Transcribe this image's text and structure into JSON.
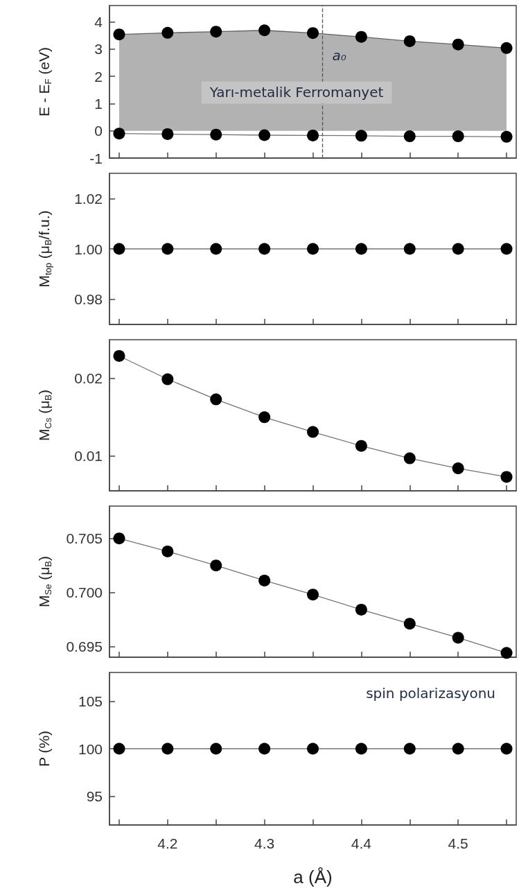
{
  "chart_data": [
    {
      "type": "area",
      "ylabel": "E - E$_{F}$ (eV)",
      "x": [
        4.15,
        4.2,
        4.25,
        4.3,
        4.35,
        4.4,
        4.45,
        4.5,
        4.55
      ],
      "series": [
        {
          "color": "#000000",
          "values": [
            3.54,
            3.6,
            3.64,
            3.69,
            3.59,
            3.45,
            3.29,
            3.17,
            3.04
          ]
        },
        {
          "type": "line",
          "color": "#000000",
          "values": [
            -0.1,
            -0.12,
            -0.14,
            -0.16,
            -0.17,
            -0.18,
            -0.2,
            -0.2,
            -0.22
          ]
        }
      ],
      "xlim": [
        4.14,
        4.56
      ],
      "xticks": [
        {
          "value": 4.15,
          "label": null
        },
        4.2,
        {
          "value": 4.25,
          "label": null
        },
        4.3,
        {
          "value": 4.35,
          "label": null
        },
        4.4,
        {
          "value": 4.45,
          "label": null
        },
        4.5,
        {
          "value": 4.55,
          "label": null
        }
      ],
      "ylim": [
        -1,
        4.6
      ],
      "yticks": [
        -1,
        0,
        1,
        2,
        3,
        4
      ],
      "ref_lines": [
        {
          "axis": "x",
          "value": 4.36,
          "label": "a₀",
          "line_style": "dashed",
          "color": "#555555"
        }
      ],
      "annotations": [
        "Yarı-metalik Ferromanyet"
      ],
      "marker": "circle",
      "line_style": "solid",
      "tick_labels": "y"
    },
    {
      "type": "line",
      "ylabel": "M$_{top}$ (μ$_{B}$/f.u.)",
      "x": [
        4.15,
        4.2,
        4.25,
        4.3,
        4.35,
        4.4,
        4.45,
        4.5,
        4.55
      ],
      "series": [
        {
          "color": "#000000",
          "values": [
            1.0,
            1.0,
            1.0,
            1.0,
            1.0,
            1.0,
            1.0,
            1.0,
            1.0
          ]
        }
      ],
      "xlim": [
        4.14,
        4.56
      ],
      "xticks": [
        {
          "value": 4.15,
          "label": null
        },
        4.2,
        {
          "value": 4.25,
          "label": null
        },
        4.3,
        {
          "value": 4.35,
          "label": null
        },
        4.4,
        {
          "value": 4.45,
          "label": null
        },
        4.5,
        {
          "value": 4.55,
          "label": null
        }
      ],
      "ylim": [
        0.97,
        1.03
      ],
      "yticks": [
        {
          "value": 0.98,
          "label": "0.98"
        },
        {
          "value": 1.0,
          "label": "1.00"
        },
        {
          "value": 1.02,
          "label": "1.02"
        }
      ],
      "marker": "circle",
      "line_style": "solid",
      "tick_labels": "y"
    },
    {
      "type": "line",
      "ylabel": "M$_{Cs}$ (μ$_{B}$)",
      "x": [
        4.15,
        4.2,
        4.25,
        4.3,
        4.35,
        4.4,
        4.45,
        4.5,
        4.55
      ],
      "series": [
        {
          "color": "#000000",
          "values": [
            0.0229,
            0.0199,
            0.0173,
            0.015,
            0.0131,
            0.0113,
            0.0097,
            0.0084,
            0.0073
          ]
        }
      ],
      "xlim": [
        4.14,
        4.56
      ],
      "xticks": [
        {
          "value": 4.15,
          "label": null
        },
        4.2,
        {
          "value": 4.25,
          "label": null
        },
        4.3,
        {
          "value": 4.35,
          "label": null
        },
        4.4,
        {
          "value": 4.45,
          "label": null
        },
        4.5,
        {
          "value": 4.55,
          "label": null
        }
      ],
      "ylim": [
        0.0055,
        0.025
      ],
      "yticks": [
        0.01,
        0.02
      ],
      "marker": "circle",
      "line_style": "solid",
      "tick_labels": "y"
    },
    {
      "type": "line",
      "ylabel": "M$_{Se}$ (μ$_{B}$)",
      "x": [
        4.15,
        4.2,
        4.25,
        4.3,
        4.35,
        4.4,
        4.45,
        4.5,
        4.55
      ],
      "series": [
        {
          "color": "#000000",
          "values": [
            0.705,
            0.7038,
            0.7025,
            0.7011,
            0.6998,
            0.6984,
            0.6971,
            0.6958,
            0.6944
          ]
        }
      ],
      "xlim": [
        4.14,
        4.56
      ],
      "xticks": [
        {
          "value": 4.15,
          "label": null
        },
        4.2,
        {
          "value": 4.25,
          "label": null
        },
        4.3,
        {
          "value": 4.35,
          "label": null
        },
        4.4,
        {
          "value": 4.45,
          "label": null
        },
        4.5,
        {
          "value": 4.55,
          "label": null
        }
      ],
      "ylim": [
        0.694,
        0.708
      ],
      "yticks": [
        0.695,
        {
          "value": 0.7,
          "label": "0.700"
        },
        0.705
      ],
      "marker": "circle",
      "line_style": "solid",
      "tick_labels": "y"
    },
    {
      "type": "line",
      "ylabel": "P (%)",
      "xlabel": "a (Å)",
      "x": [
        4.15,
        4.2,
        4.25,
        4.3,
        4.35,
        4.4,
        4.45,
        4.5,
        4.55
      ],
      "series": [
        {
          "color": "#000000",
          "values": [
            100,
            100,
            100,
            100,
            100,
            100,
            100,
            100,
            100
          ]
        }
      ],
      "xlim": [
        4.14,
        4.56
      ],
      "xticks": [
        {
          "value": 4.15,
          "label": null
        },
        4.2,
        {
          "value": 4.25,
          "label": null
        },
        4.3,
        {
          "value": 4.35,
          "label": null
        },
        4.4,
        {
          "value": 4.45,
          "label": null
        },
        4.5,
        {
          "value": 4.55,
          "label": null
        }
      ],
      "ylim": [
        92,
        108
      ],
      "yticks": [
        95,
        100,
        105
      ],
      "annotations": [
        "spin polarizasyonu"
      ],
      "marker": "circle",
      "line_style": "solid"
    }
  ]
}
